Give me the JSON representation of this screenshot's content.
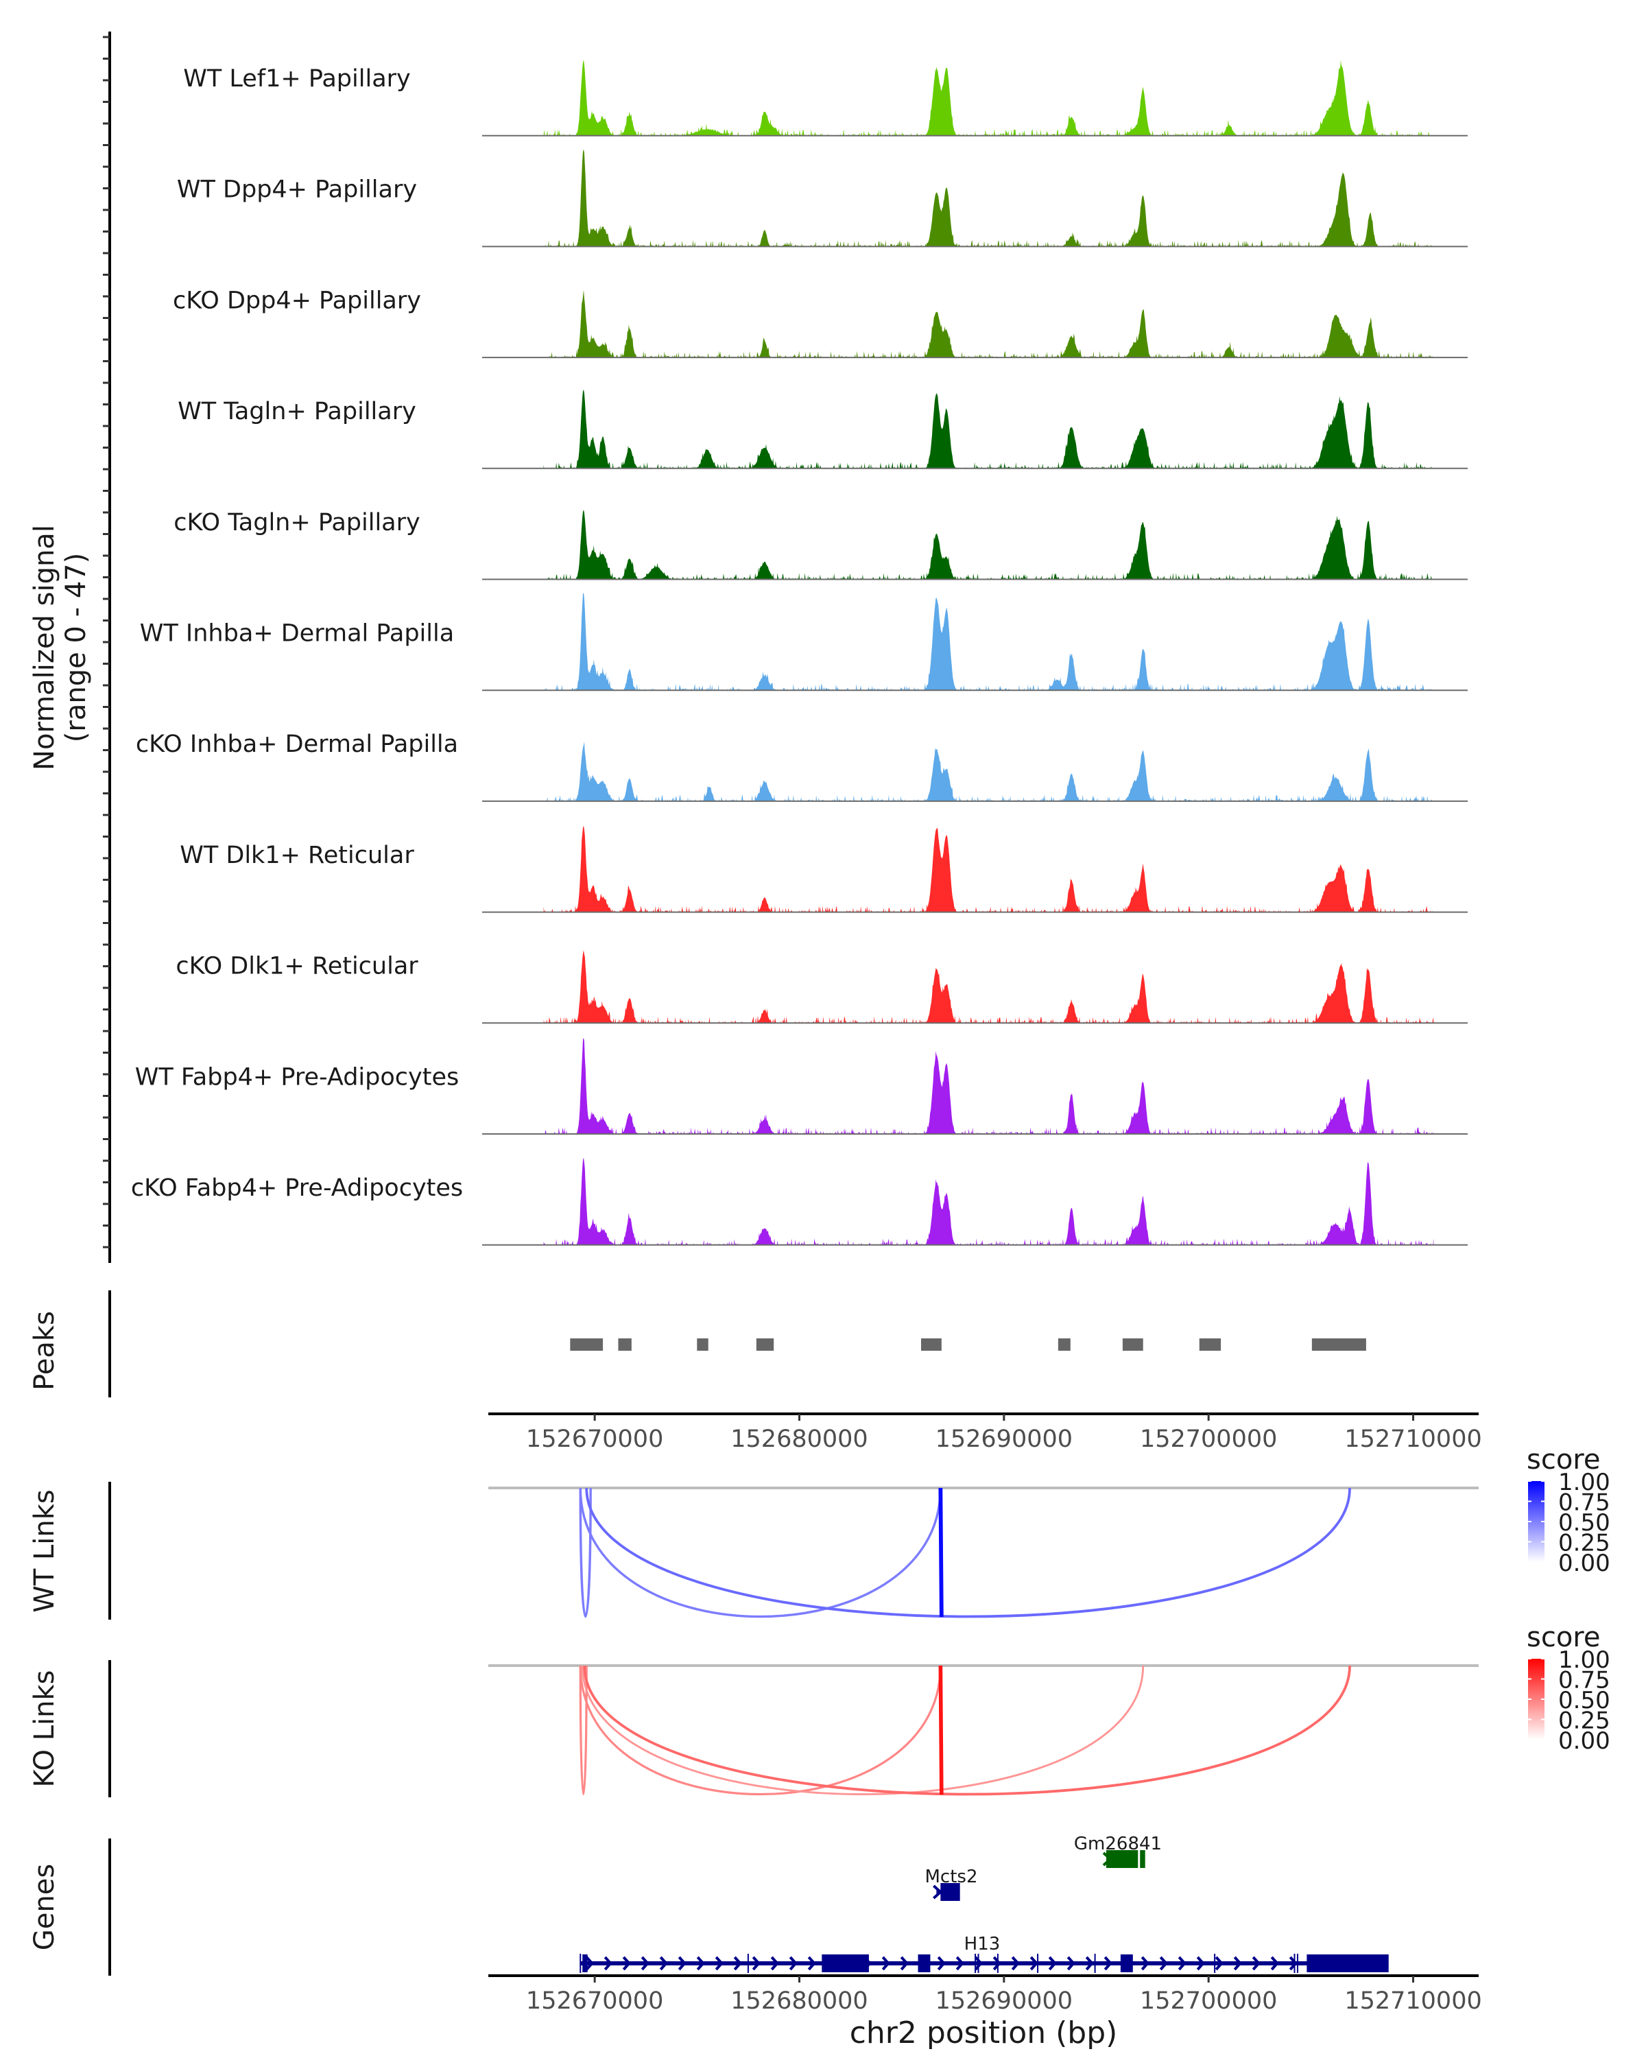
{
  "chart_data": {
    "type": "area",
    "title": "",
    "chromosome": "chr2",
    "xlabel": "chr2 position (bp)",
    "xlim": [
      152664800,
      152713200
    ],
    "x_ticks": [
      152670000,
      152680000,
      152690000,
      152700000,
      152710000
    ],
    "x_tick_labels": [
      "152670000",
      "152680000",
      "152690000",
      "152700000",
      "152710000"
    ],
    "signal": {
      "ylabel_line1": "Normalized signal",
      "ylabel_line2": "(range 0 - 47)",
      "ylim": [
        0,
        47
      ],
      "tracks": [
        {
          "name": "WT Lef1+ Papillary",
          "color": "#66CC00",
          "peaks": [
            [
              152669450,
              36,
              120
            ],
            [
              152669900,
              10,
              150
            ],
            [
              152670400,
              8,
              200
            ],
            [
              152671700,
              10,
              150
            ],
            [
              152675500,
              3,
              500
            ],
            [
              152678300,
              11,
              150
            ],
            [
              152678700,
              4,
              200
            ],
            [
              152686700,
              32,
              180
            ],
            [
              152687200,
              32,
              160
            ],
            [
              152693300,
              9,
              150
            ],
            [
              152696500,
              4,
              300
            ],
            [
              152696800,
              20,
              130
            ],
            [
              152701000,
              5,
              150
            ],
            [
              152705900,
              12,
              300
            ],
            [
              152706500,
              32,
              220
            ],
            [
              152707800,
              16,
              150
            ]
          ]
        },
        {
          "name": "WT Dpp4+ Papillary",
          "color": "#4C8C00",
          "peaks": [
            [
              152669450,
              47,
              110
            ],
            [
              152669900,
              8,
              150
            ],
            [
              152670400,
              9,
              200
            ],
            [
              152671700,
              9,
              130
            ],
            [
              152678300,
              8,
              110
            ],
            [
              152686700,
              26,
              180
            ],
            [
              152687200,
              28,
              150
            ],
            [
              152693300,
              5,
              150
            ],
            [
              152696800,
              24,
              130
            ],
            [
              152696400,
              6,
              200
            ],
            [
              152706200,
              12,
              300
            ],
            [
              152706600,
              30,
              200
            ],
            [
              152707900,
              16,
              130
            ]
          ]
        },
        {
          "name": "cKO Dpp4+ Papillary",
          "color": "#4C8C00",
          "peaks": [
            [
              152669450,
              30,
              120
            ],
            [
              152669900,
              9,
              160
            ],
            [
              152670400,
              6,
              200
            ],
            [
              152671700,
              14,
              130
            ],
            [
              152678300,
              8,
              110
            ],
            [
              152686700,
              22,
              200
            ],
            [
              152687200,
              12,
              160
            ],
            [
              152693300,
              10,
              200
            ],
            [
              152696800,
              22,
              130
            ],
            [
              152696400,
              7,
              200
            ],
            [
              152701000,
              5,
              150
            ],
            [
              152706200,
              20,
              250
            ],
            [
              152706800,
              10,
              250
            ],
            [
              152707900,
              17,
              150
            ]
          ]
        },
        {
          "name": "WT Tagln+ Papillary",
          "color": "#006400",
          "peaks": [
            [
              152669450,
              38,
              120
            ],
            [
              152669900,
              14,
              150
            ],
            [
              152670400,
              15,
              130
            ],
            [
              152671700,
              10,
              150
            ],
            [
              152675500,
              9,
              200
            ],
            [
              152678300,
              10,
              250
            ],
            [
              152686700,
              36,
              170
            ],
            [
              152687200,
              28,
              150
            ],
            [
              152693300,
              20,
              200
            ],
            [
              152696800,
              18,
              200
            ],
            [
              152696400,
              9,
              200
            ],
            [
              152705900,
              18,
              300
            ],
            [
              152706500,
              30,
              250
            ],
            [
              152707800,
              32,
              150
            ]
          ]
        },
        {
          "name": "cKO Tagln+ Papillary",
          "color": "#006400",
          "peaks": [
            [
              152669450,
              33,
              120
            ],
            [
              152669900,
              13,
              180
            ],
            [
              152670400,
              12,
              200
            ],
            [
              152671700,
              10,
              150
            ],
            [
              152673000,
              6,
              300
            ],
            [
              152678300,
              8,
              200
            ],
            [
              152686700,
              22,
              180
            ],
            [
              152687200,
              10,
              160
            ],
            [
              152696800,
              26,
              170
            ],
            [
              152696400,
              9,
              200
            ],
            [
              152705900,
              16,
              300
            ],
            [
              152706400,
              24,
              250
            ],
            [
              152707800,
              28,
              150
            ]
          ]
        },
        {
          "name": "WT Inhba+ Dermal Papilla",
          "color": "#5DA9E9",
          "peaks": [
            [
              152669450,
              47,
              110
            ],
            [
              152669900,
              12,
              150
            ],
            [
              152670400,
              8,
              200
            ],
            [
              152671700,
              10,
              110
            ],
            [
              152678300,
              7,
              200
            ],
            [
              152686700,
              44,
              180
            ],
            [
              152687200,
              38,
              160
            ],
            [
              152693300,
              17,
              140
            ],
            [
              152692600,
              5,
              200
            ],
            [
              152696800,
              20,
              130
            ],
            [
              152705900,
              22,
              300
            ],
            [
              152706500,
              30,
              220
            ],
            [
              152707800,
              34,
              150
            ]
          ]
        },
        {
          "name": "cKO Inhba+ Dermal Papilla",
          "color": "#5DA9E9",
          "peaks": [
            [
              152669450,
              26,
              130
            ],
            [
              152669900,
              11,
              180
            ],
            [
              152670400,
              9,
              200
            ],
            [
              152671700,
              11,
              130
            ],
            [
              152675600,
              7,
              120
            ],
            [
              152678300,
              9,
              200
            ],
            [
              152686700,
              25,
              180
            ],
            [
              152687200,
              15,
              160
            ],
            [
              152693300,
              13,
              150
            ],
            [
              152696800,
              23,
              140
            ],
            [
              152696400,
              9,
              200
            ],
            [
              152706200,
              11,
              300
            ],
            [
              152707800,
              24,
              150
            ]
          ]
        },
        {
          "name": "WT Dlk1+ Reticular",
          "color": "#FF2A2A",
          "peaks": [
            [
              152669450,
              41,
              120
            ],
            [
              152669900,
              12,
              150
            ],
            [
              152670400,
              7,
              180
            ],
            [
              152671700,
              11,
              140
            ],
            [
              152678300,
              7,
              130
            ],
            [
              152686700,
              40,
              180
            ],
            [
              152687200,
              36,
              160
            ],
            [
              152693300,
              15,
              140
            ],
            [
              152696800,
              20,
              130
            ],
            [
              152696400,
              9,
              200
            ],
            [
              152705900,
              14,
              300
            ],
            [
              152706500,
              20,
              220
            ],
            [
              152707800,
              21,
              150
            ]
          ]
        },
        {
          "name": "cKO Dlk1+ Reticular",
          "color": "#FF2A2A",
          "peaks": [
            [
              152669450,
              34,
              120
            ],
            [
              152669900,
              10,
              180
            ],
            [
              152670400,
              8,
              200
            ],
            [
              152671700,
              12,
              140
            ],
            [
              152678300,
              6,
              150
            ],
            [
              152686700,
              26,
              180
            ],
            [
              152687200,
              18,
              160
            ],
            [
              152693300,
              10,
              150
            ],
            [
              152696800,
              22,
              130
            ],
            [
              152696400,
              8,
              200
            ],
            [
              152705900,
              12,
              300
            ],
            [
              152706500,
              26,
              220
            ],
            [
              152707800,
              26,
              150
            ]
          ]
        },
        {
          "name": "WT Fabp4+ Pre-Adipocytes",
          "color": "#A21FEF",
          "peaks": [
            [
              152669450,
              44,
              110
            ],
            [
              152669900,
              9,
              160
            ],
            [
              152670400,
              7,
              200
            ],
            [
              152671700,
              10,
              140
            ],
            [
              152678300,
              7,
              200
            ],
            [
              152686700,
              38,
              180
            ],
            [
              152687200,
              33,
              150
            ],
            [
              152693300,
              19,
              120
            ],
            [
              152696800,
              24,
              130
            ],
            [
              152696400,
              9,
              200
            ],
            [
              152706200,
              8,
              300
            ],
            [
              152706600,
              13,
              200
            ],
            [
              152707800,
              26,
              140
            ]
          ]
        },
        {
          "name": "cKO Fabp4+ Pre-Adipocytes",
          "color": "#A21FEF",
          "peaks": [
            [
              152669450,
              42,
              110
            ],
            [
              152669900,
              10,
              160
            ],
            [
              152670400,
              7,
              200
            ],
            [
              152671700,
              13,
              140
            ],
            [
              152678300,
              8,
              200
            ],
            [
              152686700,
              30,
              180
            ],
            [
              152687200,
              24,
              150
            ],
            [
              152693300,
              18,
              120
            ],
            [
              152696800,
              21,
              130
            ],
            [
              152696400,
              8,
              200
            ],
            [
              152706200,
              10,
              300
            ],
            [
              152706900,
              16,
              150
            ],
            [
              152707800,
              40,
              130
            ]
          ]
        }
      ]
    },
    "peaks_track": {
      "label": "Peaks",
      "color": "#666666",
      "regions": [
        [
          152668800,
          152670400
        ],
        [
          152671150,
          152671800
        ],
        [
          152675000,
          152675550
        ],
        [
          152677900,
          152678750
        ],
        [
          152685950,
          152686950
        ],
        [
          152692650,
          152693250
        ],
        [
          152695800,
          152696800
        ],
        [
          152699550,
          152700600
        ],
        [
          152705050,
          152707700
        ]
      ]
    },
    "links": [
      {
        "label": "WT Links",
        "legend_title": "score",
        "legend_ticks": [
          "1.00",
          "0.75",
          "0.50",
          "0.25",
          "0.00"
        ],
        "color_low": "#FFFFFF",
        "color_high": "#0000FF",
        "arcs": [
          {
            "start": 152669300,
            "end": 152669800,
            "score": 0.35
          },
          {
            "start": 152669300,
            "end": 152686900,
            "score": 0.35
          },
          {
            "start": 152669600,
            "end": 152706900,
            "score": 0.45
          },
          {
            "start": 152686900,
            "end": 152686950,
            "score": 0.95
          }
        ]
      },
      {
        "label": "KO Links",
        "legend_title": "score",
        "legend_ticks": [
          "1.00",
          "0.75",
          "0.50",
          "0.25",
          "0.00"
        ],
        "color_low": "#FFFFFF",
        "color_high": "#FF0000",
        "arcs": [
          {
            "start": 152669300,
            "end": 152669600,
            "score": 0.3
          },
          {
            "start": 152669300,
            "end": 152686900,
            "score": 0.3
          },
          {
            "start": 152669400,
            "end": 152696800,
            "score": 0.22
          },
          {
            "start": 152669500,
            "end": 152706900,
            "score": 0.45
          },
          {
            "start": 152686900,
            "end": 152686950,
            "score": 0.9
          }
        ]
      }
    ],
    "genes": {
      "label": "Genes",
      "items": [
        {
          "name": "Gm26841",
          "strand": "+",
          "color": "#006400",
          "start": 152695000,
          "end": 152696300,
          "exons": [
            [
              152695000,
              152696550
            ],
            [
              152696650,
              152696900
            ]
          ]
        },
        {
          "name": "Mcts2",
          "strand": "+",
          "color": "#00008B",
          "start": 152686700,
          "end": 152687600,
          "exons": [
            [
              152686900,
              152687850
            ]
          ]
        },
        {
          "name": "H13",
          "strand": "+",
          "color": "#00008B",
          "start": 152669300,
          "end": 152708400,
          "exons": [
            [
              152669400,
              152669650
            ],
            [
              152681100,
              152683400
            ],
            [
              152685800,
              152686400
            ],
            [
              152695700,
              152696300
            ],
            [
              152704800,
              152708800
            ]
          ],
          "marks": [
            152669300,
            152677500,
            152688600,
            152688750,
            152689700,
            152691650,
            152694450,
            152700300,
            152704200,
            152704350
          ]
        }
      ]
    }
  }
}
